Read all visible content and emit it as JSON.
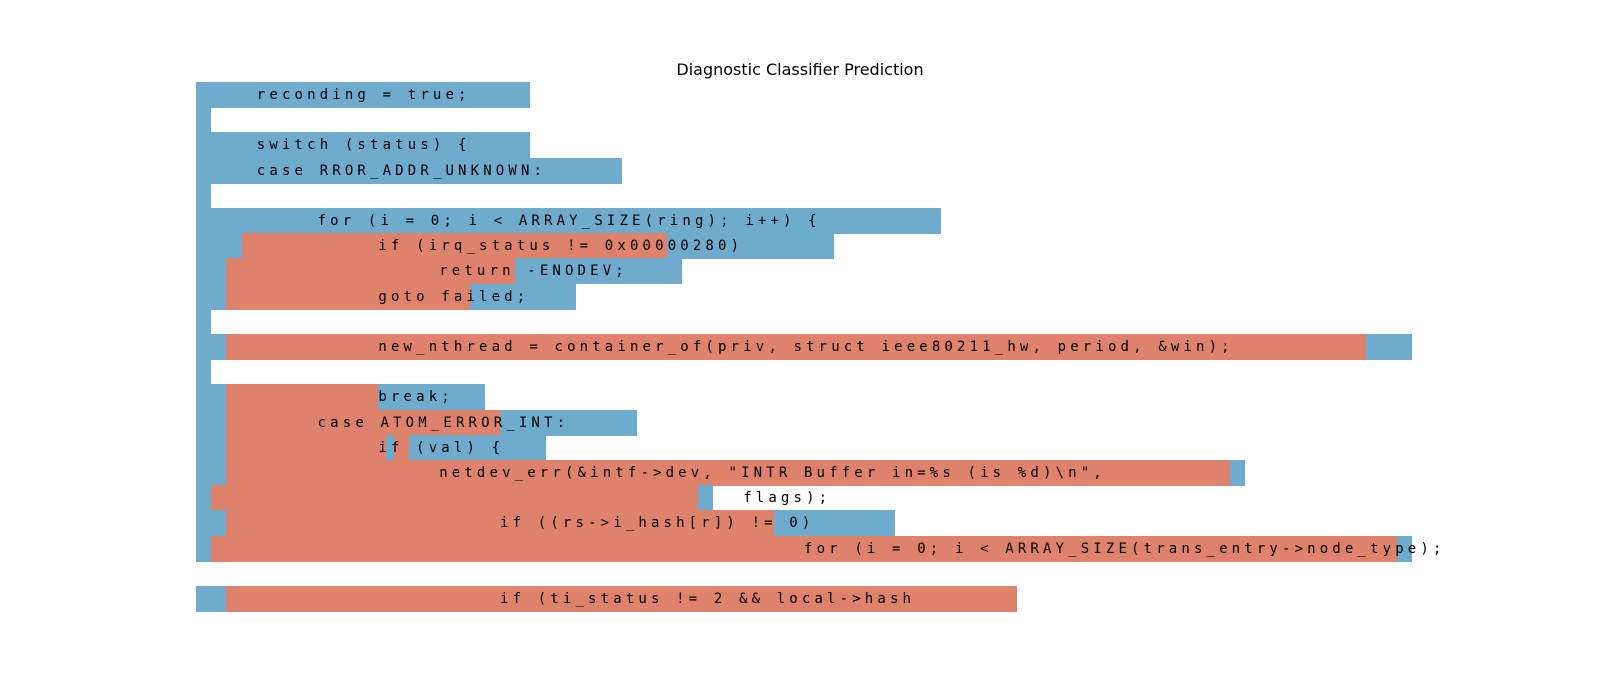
{
  "title": "Diagnostic Classifier Prediction",
  "colors": {
    "blue": "#6fabcc",
    "red": "#df826c"
  },
  "lines": [
    {
      "indent": 1,
      "text": "reconding = true;",
      "red": []
    },
    {
      "indent": 0,
      "text": "",
      "red": []
    },
    {
      "indent": 1,
      "text": "switch (status) {",
      "red": []
    },
    {
      "indent": 1,
      "text": "case RROR_ADDR_UNKNOWN:",
      "red": []
    },
    {
      "indent": 0,
      "text": "",
      "red": []
    },
    {
      "indent": 2,
      "text": "for (i = 0; i < ARRAY_SIZE(ring); i++) {",
      "red": []
    },
    {
      "indent": 3,
      "text": "if (irq_status != 0x00000280)",
      "red": [
        [
          3,
          31
        ]
      ]
    },
    {
      "indent": 4,
      "text": "return -ENODEV;",
      "red": [
        [
          2,
          21
        ]
      ]
    },
    {
      "indent": 3,
      "text": "goto failed;",
      "red": [
        [
          2,
          18
        ]
      ]
    },
    {
      "indent": 0,
      "text": "",
      "red": []
    },
    {
      "indent": 3,
      "text": "new_nthread = container_of(priv, struct ieee80211_hw, period, &win);",
      "red": [
        [
          2,
          77
        ]
      ]
    },
    {
      "indent": 0,
      "text": "",
      "red": []
    },
    {
      "indent": 3,
      "text": "break;",
      "red": [
        [
          2,
          12
        ]
      ]
    },
    {
      "indent": 2,
      "text": "case ATOM_ERROR_INT:",
      "red": [
        [
          2,
          20
        ]
      ]
    },
    {
      "indent": 3,
      "text": "if (val) {",
      "red": [
        [
          2,
          12.5
        ],
        [
          13,
          14
        ]
      ]
    },
    {
      "indent": 4,
      "text": "netdev_err(&intf->dev, \"INTR Buffer in=%s (is %d)\\n\",",
      "red": [
        [
          2,
          68
        ]
      ]
    },
    {
      "indent": 9,
      "text": "flags);",
      "red": [
        [
          1,
          33
        ]
      ]
    },
    {
      "indent": 5,
      "text": "if ((rs->i_hash[r]) != 0)",
      "red": [
        [
          2,
          38
        ]
      ]
    },
    {
      "indent": 10,
      "text": "for (i = 0; i < ARRAY_SIZE(trans_entry->node_type);",
      "red": [
        [
          1,
          79
        ]
      ]
    },
    {
      "indent": 0,
      "text": "",
      "red": []
    },
    {
      "indent": 5,
      "text": "if (ti_status != 2 && local->hash",
      "red": [
        [
          2,
          54
        ]
      ]
    }
  ],
  "blue_extents": [
    22,
    1,
    22,
    28,
    1,
    49,
    42,
    32,
    25,
    1,
    80,
    1,
    19,
    29,
    23,
    69,
    34,
    46,
    80,
    0,
    54
  ]
}
